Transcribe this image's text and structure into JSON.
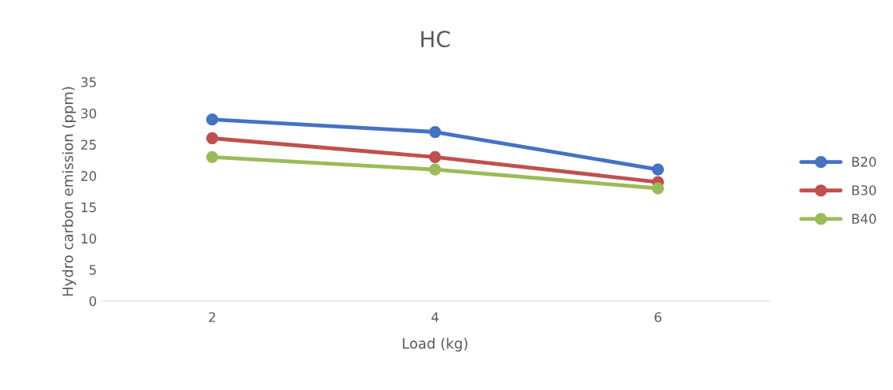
{
  "chart_data": {
    "type": "line",
    "title": "HC",
    "xlabel": "Load (kg)",
    "ylabel": "Hydro carbon emission (ppm)",
    "categories": [
      "2",
      "4",
      "6"
    ],
    "series": [
      {
        "name": "B20",
        "color": "#4472c4",
        "values": [
          29,
          27,
          21
        ]
      },
      {
        "name": "B30",
        "color": "#c0504d",
        "values": [
          26,
          23,
          19
        ]
      },
      {
        "name": "B40",
        "color": "#9bbb59",
        "values": [
          23,
          21,
          18
        ]
      }
    ],
    "ylim": [
      0,
      35
    ],
    "yticks": [
      0,
      5,
      10,
      15,
      20,
      25,
      30,
      35
    ],
    "grid": false,
    "legend": "right",
    "marker": "circle",
    "line_style": "solid"
  }
}
